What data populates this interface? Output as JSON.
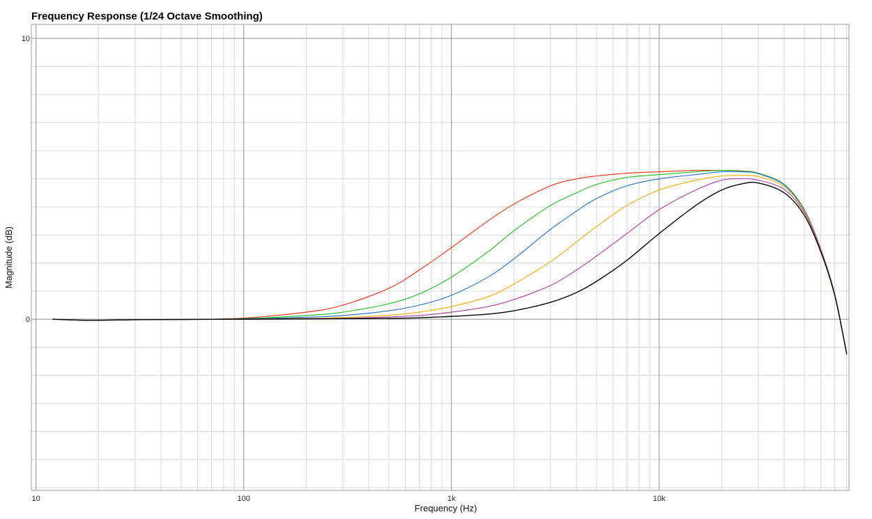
{
  "chart_data": {
    "type": "line",
    "title": "Frequency Response (1/24 Octave Smoothing)",
    "xlabel": "Frequency (Hz)",
    "ylabel": "Magnitude (dB)",
    "x_scale": "log",
    "xlim": [
      9.5,
      82000
    ],
    "ylim": [
      -6.1,
      10.5
    ],
    "x_ticks": [
      {
        "value": 10,
        "label": "10"
      },
      {
        "value": 100,
        "label": "100"
      },
      {
        "value": 1000,
        "label": "1k"
      },
      {
        "value": 10000,
        "label": "10k"
      }
    ],
    "y_ticks": [
      {
        "value": 10,
        "label": "10"
      },
      {
        "value": 0,
        "label": "0"
      }
    ],
    "grid": true,
    "x": [
      12,
      18,
      30,
      50,
      100,
      200,
      300,
      500,
      700,
      1000,
      1500,
      2000,
      3000,
      4000,
      5000,
      7000,
      10000,
      15000,
      20000,
      25000,
      30000,
      40000,
      50000,
      60000,
      70000,
      80000
    ],
    "series": [
      {
        "color": "#ee2a0c",
        "values": [
          0.0,
          -0.04,
          -0.02,
          -0.01,
          0.04,
          0.25,
          0.5,
          1.1,
          1.75,
          2.55,
          3.5,
          4.1,
          4.75,
          5.0,
          5.1,
          5.2,
          5.25,
          5.3,
          5.3,
          5.28,
          5.2,
          4.8,
          3.9,
          2.5,
          0.9,
          -1.25
        ]
      },
      {
        "color": "#1cbf1c",
        "values": [
          0.0,
          -0.04,
          -0.02,
          -0.01,
          0.02,
          0.13,
          0.25,
          0.55,
          0.9,
          1.5,
          2.4,
          3.15,
          4.05,
          4.5,
          4.8,
          5.05,
          5.15,
          5.25,
          5.3,
          5.27,
          5.2,
          4.8,
          3.9,
          2.5,
          0.9,
          -1.25
        ]
      },
      {
        "color": "#1f6fcc",
        "values": [
          0.0,
          -0.04,
          -0.02,
          -0.01,
          0.01,
          0.07,
          0.13,
          0.3,
          0.5,
          0.85,
          1.5,
          2.15,
          3.2,
          3.85,
          4.3,
          4.75,
          5.0,
          5.15,
          5.25,
          5.25,
          5.18,
          4.78,
          3.88,
          2.5,
          0.9,
          -1.25
        ]
      },
      {
        "color": "#f5a800",
        "values": [
          0.0,
          -0.04,
          -0.02,
          -0.01,
          0.0,
          0.03,
          0.06,
          0.14,
          0.25,
          0.45,
          0.8,
          1.25,
          2.05,
          2.75,
          3.3,
          4.05,
          4.6,
          4.95,
          5.1,
          5.12,
          5.08,
          4.72,
          3.85,
          2.48,
          0.9,
          -1.25
        ]
      },
      {
        "color": "#b03aa0",
        "values": [
          0.0,
          -0.04,
          -0.02,
          -0.01,
          0.0,
          0.02,
          0.03,
          0.08,
          0.13,
          0.25,
          0.45,
          0.7,
          1.2,
          1.75,
          2.25,
          3.05,
          3.9,
          4.6,
          4.95,
          5.0,
          4.95,
          4.62,
          3.8,
          2.45,
          0.88,
          -1.25
        ]
      },
      {
        "color": "#000000",
        "values": [
          0.0,
          -0.04,
          -0.02,
          -0.01,
          0.0,
          0.01,
          0.02,
          0.03,
          0.05,
          0.1,
          0.18,
          0.3,
          0.6,
          0.95,
          1.35,
          2.1,
          3.05,
          4.05,
          4.6,
          4.82,
          4.85,
          4.5,
          3.7,
          2.4,
          0.85,
          -1.25
        ]
      }
    ]
  }
}
